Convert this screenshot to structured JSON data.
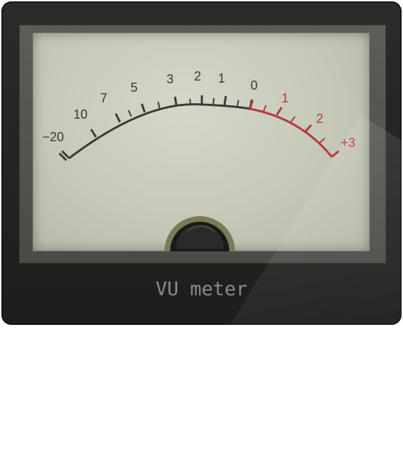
{
  "meter": {
    "caption": "VU meter",
    "scale": {
      "black": [
        {
          "label": "−20"
        },
        {
          "label": "10"
        },
        {
          "label": "7"
        },
        {
          "label": "5"
        },
        {
          "label": "3"
        },
        {
          "label": "2"
        },
        {
          "label": "1"
        },
        {
          "label": "0"
        }
      ],
      "red": [
        {
          "label": "1"
        },
        {
          "label": "2"
        },
        {
          "label": "+3"
        }
      ]
    },
    "colors": {
      "scale_black": "#3a3b36",
      "scale_red": "#b33a3a",
      "face": "#c9cbbc",
      "housing": "#222221"
    }
  }
}
